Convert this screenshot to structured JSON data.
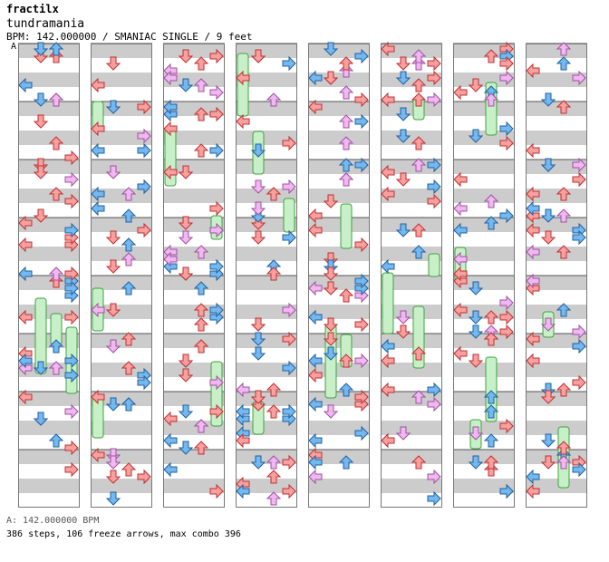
{
  "header": {
    "artist": "fractilx",
    "song": "tundramania",
    "info": "BPM: 142.000000 / SMANIAC SINGLE / 9 feet",
    "section_label": "A"
  },
  "footer": {
    "bpm_line": "A: 142.000000 BPM",
    "stats_line": "386 steps, 106 freeze arrows, max combo 396"
  },
  "colors": {
    "stripe": "#cccccc",
    "panel_bg": "#ffffff",
    "border": "#777777",
    "arrow_red": "#f8a0a0",
    "arrow_red_stroke": "#c03030",
    "arrow_blue": "#74b8f0",
    "arrow_blue_stroke": "#2060a0",
    "arrow_pink": "#f0b8f0",
    "arrow_pink_stroke": "#a050a0",
    "freeze_fill": "#c8f0c8",
    "freeze_stroke": "#40a040"
  },
  "columns": 8,
  "measures_per_column": 8
}
